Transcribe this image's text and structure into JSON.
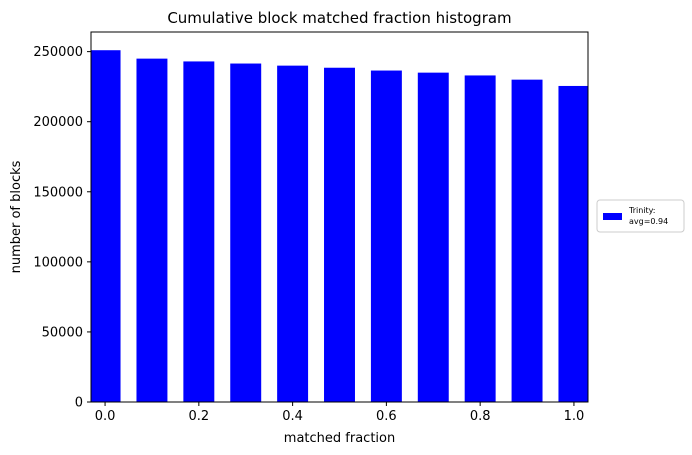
{
  "chart_data": {
    "type": "bar",
    "title": "Cumulative block matched fraction histogram",
    "xlabel": "matched fraction",
    "ylabel": "number of blocks",
    "x": [
      0.0,
      0.1,
      0.2,
      0.3,
      0.4,
      0.5,
      0.6,
      0.7,
      0.8,
      0.9,
      1.0
    ],
    "bar_width": 0.066,
    "series": [
      {
        "name": "Trinity:\navg=0.94",
        "legend_lines": [
          "Trinity:",
          "avg=0.94"
        ],
        "color": "#0000ff",
        "values": [
          251000,
          245000,
          243000,
          241500,
          240000,
          238500,
          236500,
          235000,
          233000,
          230000,
          225500
        ]
      }
    ],
    "xlim": [
      -0.03,
      1.03
    ],
    "ylim": [
      0,
      264000
    ],
    "xticks": [
      0.0,
      0.2,
      0.4,
      0.6,
      0.8,
      1.0
    ],
    "xtick_labels": [
      "0.0",
      "0.2",
      "0.4",
      "0.6",
      "0.8",
      "1.0"
    ],
    "yticks": [
      0,
      50000,
      100000,
      150000,
      200000,
      250000
    ],
    "ytick_labels": [
      "0",
      "50000",
      "100000",
      "150000",
      "200000",
      "250000"
    ],
    "grid": false,
    "legend_position": "right, outside plot"
  }
}
